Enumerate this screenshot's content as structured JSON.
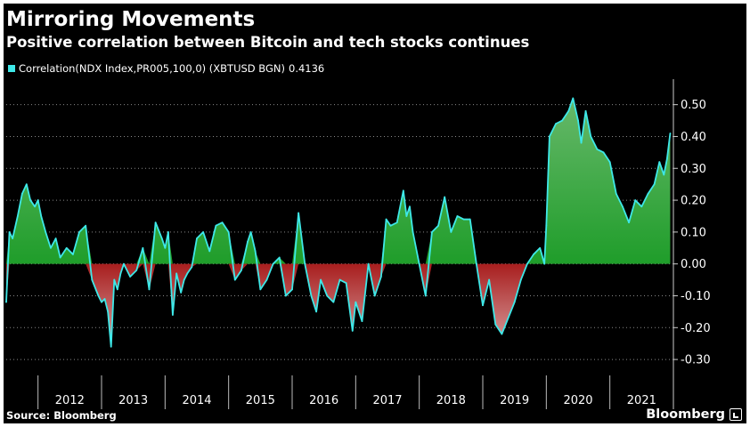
{
  "header": {
    "title": "Mirroring Movements",
    "subtitle": "Positive correlation between Bitcoin and tech stocks continues"
  },
  "legend": {
    "label": "Correlation(NDX Index,PR005,100,0) (XBTUSD BGN)",
    "last_value": "0.4136"
  },
  "footer": {
    "source": "Source: Bloomberg",
    "brand": "Bloomberg"
  },
  "colors": {
    "background": "#000000",
    "line": "#3ee8e8",
    "positive_fill": "#1f9d2a",
    "negative_fill": "#a81e1e",
    "grid": "#888888",
    "text": "#ffffff"
  },
  "chart_data": {
    "type": "area",
    "title": "Mirroring Movements",
    "subtitle": "Positive correlation between Bitcoin and tech stocks continues",
    "series_name": "Correlation(NDX Index,PR005,100,0) (XBTUSD BGN)",
    "last_value": 0.4136,
    "xlabel": "",
    "ylabel": "",
    "x_range": [
      2011.5,
      2022.0
    ],
    "ylim": [
      -0.35,
      0.58
    ],
    "y_ticks": [
      0.5,
      0.4,
      0.3,
      0.2,
      0.1,
      0.0,
      -0.1,
      -0.2,
      -0.3
    ],
    "y_tick_labels": [
      "0.50",
      "0.40",
      "0.30",
      "0.20",
      "0.10",
      "0.00",
      "-0.10",
      "-0.20",
      "-0.30"
    ],
    "x_tick_labels": [
      "2012",
      "2013",
      "2014",
      "2015",
      "2016",
      "2017",
      "2018",
      "2019",
      "2020",
      "2021"
    ],
    "x_year_boundaries": [
      2012,
      2013,
      2014,
      2015,
      2016,
      2017,
      2018,
      2019,
      2020,
      2021
    ],
    "grid": "horizontal dotted",
    "x": [
      2011.5,
      2011.55,
      2011.6,
      2011.68,
      2011.75,
      2011.82,
      2011.88,
      2011.95,
      2012.0,
      2012.05,
      2012.12,
      2012.2,
      2012.28,
      2012.35,
      2012.45,
      2012.55,
      2012.65,
      2012.75,
      2012.85,
      2012.95,
      2013.0,
      2013.05,
      2013.1,
      2013.15,
      2013.2,
      2013.25,
      2013.3,
      2013.35,
      2013.45,
      2013.55,
      2013.65,
      2013.75,
      2013.85,
      2013.95,
      2014.0,
      2014.05,
      2014.12,
      2014.18,
      2014.25,
      2014.3,
      2014.35,
      2014.42,
      2014.5,
      2014.6,
      2014.7,
      2014.8,
      2014.9,
      2015.0,
      2015.1,
      2015.2,
      2015.3,
      2015.35,
      2015.42,
      2015.5,
      2015.6,
      2015.7,
      2015.8,
      2015.9,
      2016.0,
      2016.1,
      2016.2,
      2016.3,
      2016.38,
      2016.45,
      2016.55,
      2016.65,
      2016.75,
      2016.85,
      2016.95,
      2017.0,
      2017.1,
      2017.2,
      2017.3,
      2017.4,
      2017.48,
      2017.55,
      2017.65,
      2017.75,
      2017.8,
      2017.85,
      2017.9,
      2018.0,
      2018.1,
      2018.2,
      2018.3,
      2018.4,
      2018.5,
      2018.6,
      2018.7,
      2018.8,
      2018.9,
      2019.0,
      2019.1,
      2019.2,
      2019.3,
      2019.4,
      2019.5,
      2019.6,
      2019.7,
      2019.8,
      2019.9,
      2019.97,
      2020.0,
      2020.05,
      2020.15,
      2020.25,
      2020.35,
      2020.42,
      2020.5,
      2020.55,
      2020.62,
      2020.7,
      2020.8,
      2020.9,
      2021.0,
      2021.1,
      2021.2,
      2021.3,
      2021.4,
      2021.5,
      2021.6,
      2021.7,
      2021.78,
      2021.85,
      2021.9,
      2021.95
    ],
    "values": [
      -0.12,
      0.1,
      0.08,
      0.15,
      0.22,
      0.25,
      0.2,
      0.18,
      0.2,
      0.15,
      0.1,
      0.05,
      0.08,
      0.02,
      0.05,
      0.03,
      0.1,
      0.12,
      -0.05,
      -0.1,
      -0.12,
      -0.11,
      -0.15,
      -0.26,
      -0.05,
      -0.08,
      -0.03,
      0.0,
      -0.04,
      -0.02,
      0.05,
      -0.08,
      0.13,
      0.08,
      0.05,
      0.1,
      -0.16,
      -0.03,
      -0.09,
      -0.05,
      -0.03,
      -0.01,
      0.08,
      0.1,
      0.04,
      0.12,
      0.13,
      0.1,
      -0.05,
      -0.02,
      0.07,
      0.1,
      0.04,
      -0.08,
      -0.05,
      0.0,
      0.02,
      -0.1,
      -0.08,
      0.16,
      0.0,
      -0.1,
      -0.15,
      -0.05,
      -0.1,
      -0.12,
      -0.05,
      -0.06,
      -0.21,
      -0.12,
      -0.18,
      0.0,
      -0.1,
      -0.04,
      0.14,
      0.12,
      0.13,
      0.23,
      0.15,
      0.18,
      0.1,
      0.0,
      -0.1,
      0.1,
      0.12,
      0.21,
      0.1,
      0.15,
      0.14,
      0.14,
      0.0,
      -0.13,
      -0.05,
      -0.19,
      -0.22,
      -0.17,
      -0.12,
      -0.05,
      0.0,
      0.03,
      0.05,
      0.0,
      0.12,
      0.4,
      0.44,
      0.45,
      0.48,
      0.52,
      0.45,
      0.38,
      0.48,
      0.4,
      0.36,
      0.35,
      0.32,
      0.22,
      0.18,
      0.13,
      0.2,
      0.18,
      0.22,
      0.25,
      0.32,
      0.28,
      0.33,
      0.41
    ]
  }
}
